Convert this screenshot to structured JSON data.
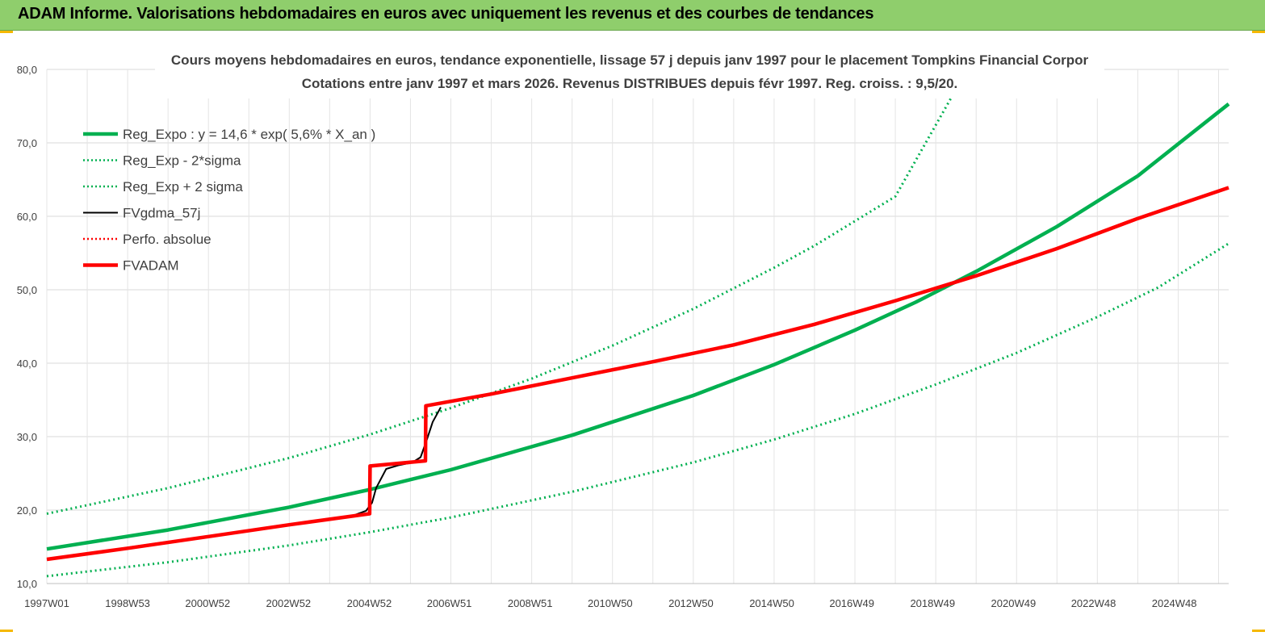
{
  "header": {
    "title": "ADAM Informe. Valorisations hebdomadaires en euros avec uniquement les revenus et des courbes de tendances"
  },
  "colors": {
    "banner": "#8fce6c",
    "reg_expo": "#00b050",
    "fvadam": "#ff0000",
    "fvgdma": "#000000"
  },
  "chart_data": {
    "type": "line",
    "title_line1": "Cours moyens hebdomadaires en euros, tendance exponentielle, lissage 57 j depuis janv 1997  pour le placement Tompkins Financial Corpor",
    "title_line2": "Cotations entre janv 1997 et mars 2026. Revenus DISTRIBUES depuis févr 1997. Reg. croiss. : 9,5/20.",
    "x_tick_labels": [
      "1997W01",
      "1998W53",
      "2000W52",
      "2002W52",
      "2004W52",
      "2006W51",
      "2008W51",
      "2010W50",
      "2012W50",
      "2014W50",
      "2016W49",
      "2018W49",
      "2020W49",
      "2022W48",
      "2024W48"
    ],
    "x_range_years": [
      1997.0,
      2026.25
    ],
    "y_tick_labels": [
      "10,0",
      "20,0",
      "30,0",
      "40,0",
      "50,0",
      "60,0",
      "70,0",
      "80,0"
    ],
    "ylim": [
      10,
      80
    ],
    "grid": true,
    "legend_position": "top-left",
    "series": [
      {
        "name": "Reg_Expo : y = 14,6 * exp( 5,6% *  X_an )",
        "style": "solid-thick",
        "color": "#00b050",
        "x": [
          1997.0,
          2000.0,
          2003.0,
          2005.0,
          2007.0,
          2010.0,
          2013.0,
          2015.0,
          2017.0,
          2018.5,
          2020.0,
          2022.0,
          2024.0,
          2026.25
        ],
        "y": [
          14.7,
          17.3,
          20.4,
          22.8,
          25.5,
          30.2,
          35.6,
          39.8,
          44.5,
          48.3,
          52.5,
          58.6,
          65.5,
          75.3
        ]
      },
      {
        "name": "Reg_Exp - 2*sigma",
        "style": "dotted",
        "color": "#00b050",
        "x": [
          1997.0,
          2000.0,
          2003.0,
          2005.0,
          2007.0,
          2010.0,
          2013.0,
          2015.0,
          2017.0,
          2019.0,
          2021.0,
          2023.0,
          2024.5,
          2026.25
        ],
        "y": [
          11.0,
          12.9,
          15.2,
          17.0,
          19.0,
          22.5,
          26.5,
          29.6,
          33.1,
          37.1,
          41.4,
          46.3,
          50.3,
          56.3
        ]
      },
      {
        "name": "Reg_Exp + 2 sigma",
        "style": "dotted",
        "color": "#00b050",
        "x": [
          1997.0,
          2000.0,
          2003.0,
          2005.0,
          2007.0,
          2009.0,
          2011.0,
          2013.0,
          2015.0,
          2016.0,
          2018.0,
          2019.4
        ],
        "y": [
          19.5,
          23.0,
          27.1,
          30.3,
          33.9,
          37.9,
          42.4,
          47.4,
          53.0,
          56.0,
          62.7,
          76.3
        ]
      },
      {
        "name": "FVgdma_57j",
        "style": "solid",
        "color": "#000000",
        "x": [
          1997.0,
          2000.0,
          2003.0,
          2004.6,
          2004.9,
          2005.05,
          2005.15,
          2005.4,
          2005.7,
          2006.05,
          2006.25,
          2006.4,
          2006.55,
          2006.75
        ],
        "y": [
          13.3,
          15.7,
          17.9,
          19.3,
          19.9,
          21.0,
          23.0,
          25.6,
          26.1,
          26.5,
          27.2,
          29.5,
          32.0,
          34.0
        ]
      },
      {
        "name": "Perfo. absolue",
        "style": "dotted",
        "color": "#ff0000",
        "x": [],
        "y": []
      },
      {
        "name": "FVADAM",
        "style": "solid-thick",
        "color": "#ff0000",
        "x": [
          1997.0,
          1999.0,
          2001.0,
          2003.0,
          2004.99,
          2005.0,
          2006.37,
          2006.38,
          2008.0,
          2010.0,
          2012.0,
          2014.0,
          2016.0,
          2018.0,
          2020.0,
          2022.0,
          2024.0,
          2026.25
        ],
        "y": [
          13.3,
          14.8,
          16.4,
          18.0,
          19.5,
          26.0,
          26.7,
          34.2,
          35.8,
          38.0,
          40.2,
          42.5,
          45.3,
          48.5,
          51.9,
          55.6,
          59.7,
          63.9
        ]
      }
    ]
  }
}
